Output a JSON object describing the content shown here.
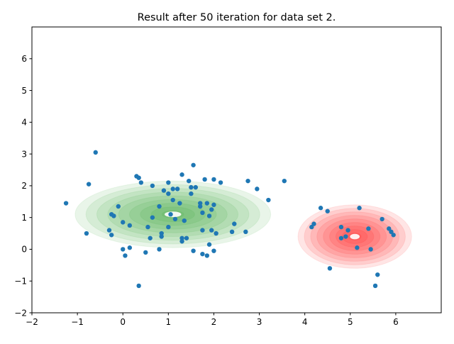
{
  "chart_data": {
    "type": "scatter",
    "title": "Result after 50 iteration for data set 2.",
    "xlabel": "",
    "ylabel": "",
    "xlim": [
      -2,
      7
    ],
    "ylim": [
      -2,
      7
    ],
    "xticks": [
      -2,
      -1,
      0,
      1,
      2,
      3,
      4,
      5,
      6
    ],
    "yticks": [
      -2,
      -1,
      0,
      1,
      2,
      3,
      4,
      5,
      6
    ],
    "grid": false,
    "point_color": "#1f77b4",
    "contours": [
      {
        "center": [
          1.1,
          1.1
        ],
        "rx": 2.15,
        "ry": 1.05,
        "rings": 9,
        "color": "#2ca02c"
      },
      {
        "center": [
          5.1,
          0.4
        ],
        "rx": 1.25,
        "ry": 1.0,
        "rings": 9,
        "color": "#ff0000"
      }
    ],
    "points": [
      [
        -1.25,
        1.45
      ],
      [
        -0.75,
        2.05
      ],
      [
        -0.6,
        3.05
      ],
      [
        -0.8,
        0.5
      ],
      [
        -0.3,
        0.6
      ],
      [
        -0.25,
        1.1
      ],
      [
        -0.25,
        0.45
      ],
      [
        -0.2,
        1.05
      ],
      [
        -0.1,
        1.35
      ],
      [
        0.0,
        0.85
      ],
      [
        0.15,
        0.75
      ],
      [
        0.0,
        0.0
      ],
      [
        0.05,
        -0.2
      ],
      [
        0.15,
        0.05
      ],
      [
        0.3,
        2.3
      ],
      [
        0.35,
        2.25
      ],
      [
        0.4,
        2.1
      ],
      [
        0.55,
        0.7
      ],
      [
        0.5,
        -0.1
      ],
      [
        0.6,
        0.35
      ],
      [
        0.65,
        1.0
      ],
      [
        0.65,
        2.0
      ],
      [
        0.8,
        1.35
      ],
      [
        0.85,
        0.4
      ],
      [
        0.85,
        0.5
      ],
      [
        0.8,
        0.0
      ],
      [
        0.9,
        1.85
      ],
      [
        1.0,
        1.75
      ],
      [
        1.0,
        2.1
      ],
      [
        1.0,
        0.7
      ],
      [
        1.05,
        1.1
      ],
      [
        1.1,
        1.55
      ],
      [
        1.1,
        1.9
      ],
      [
        1.15,
        0.95
      ],
      [
        1.2,
        1.9
      ],
      [
        1.25,
        1.45
      ],
      [
        1.3,
        2.35
      ],
      [
        1.3,
        0.35
      ],
      [
        1.3,
        0.25
      ],
      [
        1.35,
        0.9
      ],
      [
        1.4,
        0.35
      ],
      [
        1.45,
        2.15
      ],
      [
        1.5,
        1.75
      ],
      [
        1.5,
        1.95
      ],
      [
        1.55,
        2.65
      ],
      [
        1.55,
        -0.05
      ],
      [
        1.6,
        1.95
      ],
      [
        1.7,
        1.45
      ],
      [
        1.7,
        1.35
      ],
      [
        1.75,
        1.15
      ],
      [
        1.75,
        -0.15
      ],
      [
        1.75,
        0.6
      ],
      [
        1.8,
        2.2
      ],
      [
        1.85,
        1.45
      ],
      [
        1.85,
        -0.2
      ],
      [
        1.9,
        1.05
      ],
      [
        1.9,
        0.15
      ],
      [
        1.95,
        0.6
      ],
      [
        1.95,
        1.25
      ],
      [
        2.0,
        1.4
      ],
      [
        2.0,
        2.2
      ],
      [
        2.0,
        -0.05
      ],
      [
        2.05,
        0.5
      ],
      [
        2.15,
        2.1
      ],
      [
        2.4,
        0.55
      ],
      [
        2.45,
        0.8
      ],
      [
        2.7,
        0.55
      ],
      [
        2.75,
        2.15
      ],
      [
        2.95,
        1.9
      ],
      [
        3.2,
        1.55
      ],
      [
        3.55,
        2.15
      ],
      [
        0.35,
        -1.15
      ],
      [
        4.15,
        0.7
      ],
      [
        4.2,
        0.8
      ],
      [
        4.35,
        1.3
      ],
      [
        4.5,
        1.2
      ],
      [
        4.55,
        -0.6
      ],
      [
        4.8,
        0.7
      ],
      [
        4.8,
        0.35
      ],
      [
        4.9,
        0.4
      ],
      [
        4.95,
        0.6
      ],
      [
        5.15,
        0.05
      ],
      [
        5.2,
        1.3
      ],
      [
        5.4,
        0.65
      ],
      [
        5.45,
        0.0
      ],
      [
        5.55,
        -1.15
      ],
      [
        5.6,
        -0.8
      ],
      [
        5.7,
        0.95
      ],
      [
        5.85,
        0.65
      ],
      [
        5.9,
        0.55
      ],
      [
        5.95,
        0.45
      ]
    ]
  }
}
